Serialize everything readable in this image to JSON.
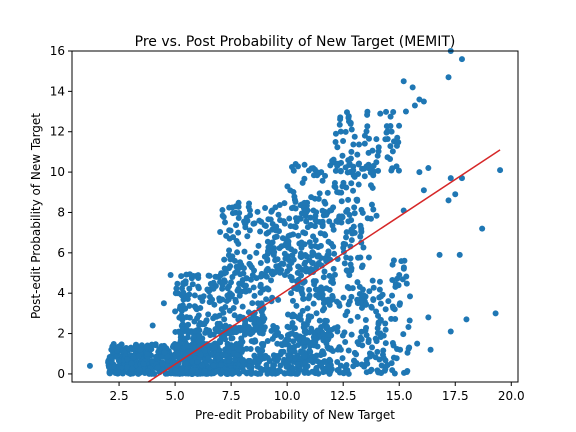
{
  "chart_data": {
    "type": "scatter",
    "title": "Pre vs. Post Probability of New Target (MEMIT)",
    "xlabel": "Pre-edit Probability of New Target",
    "ylabel": "Post-edit Probability of New Target",
    "xlim": [
      0.4,
      20.3
    ],
    "ylim": [
      -0.4,
      16.0
    ],
    "xticks": [
      2.5,
      5.0,
      7.5,
      10.0,
      12.5,
      15.0,
      17.5,
      20.0
    ],
    "xtick_labels": [
      "2.5",
      "5.0",
      "7.5",
      "10.0",
      "12.5",
      "15.0",
      "17.5",
      "20.0"
    ],
    "yticks": [
      0,
      2,
      4,
      6,
      8,
      10,
      12,
      14,
      16
    ],
    "ytick_labels": [
      "0",
      "2",
      "4",
      "6",
      "8",
      "10",
      "12",
      "14",
      "16"
    ],
    "grid": false,
    "point_color": "#1f77b4",
    "fit_line": {
      "x": [
        3.8,
        19.5
      ],
      "y": [
        -0.4,
        11.1
      ],
      "color": "#d62728"
    },
    "points": {
      "notable": [
        [
          17.3,
          16.0
        ],
        [
          17.8,
          15.6
        ],
        [
          17.2,
          14.7
        ],
        [
          16.1,
          13.5
        ],
        [
          15.9,
          13.6
        ],
        [
          15.7,
          13.3
        ],
        [
          15.2,
          14.5
        ],
        [
          15.6,
          14.2
        ],
        [
          15.3,
          13.0
        ],
        [
          16.3,
          10.2
        ],
        [
          15.9,
          10.0
        ],
        [
          17.3,
          9.7
        ],
        [
          17.8,
          9.7
        ],
        [
          19.5,
          10.1
        ],
        [
          17.2,
          8.6
        ],
        [
          17.5,
          8.9
        ],
        [
          18.7,
          7.2
        ],
        [
          17.7,
          5.9
        ],
        [
          15.0,
          4.9
        ],
        [
          14.9,
          4.4
        ],
        [
          19.3,
          3.0
        ],
        [
          18.0,
          2.7
        ],
        [
          17.3,
          2.1
        ],
        [
          16.3,
          2.8
        ],
        [
          16.4,
          1.2
        ],
        [
          15.8,
          1.5
        ],
        [
          4.5,
          3.5
        ],
        [
          4.8,
          4.9
        ],
        [
          4.0,
          2.4
        ],
        [
          1.2,
          0.4
        ],
        [
          2.2,
          0.8
        ],
        [
          16.8,
          5.9
        ],
        [
          16.1,
          9.1
        ],
        [
          15.2,
          8.1
        ]
      ],
      "dense_regions": [
        {
          "n": 600,
          "x": [
            2.0,
            8.0
          ],
          "y": [
            0.0,
            1.5
          ]
        },
        {
          "n": 420,
          "x": [
            5.0,
            12.0
          ],
          "y": [
            0.0,
            2.5
          ]
        },
        {
          "n": 220,
          "x": [
            5.0,
            9.0
          ],
          "y": [
            2.0,
            5.0
          ]
        },
        {
          "n": 200,
          "x": [
            9.0,
            13.5
          ],
          "y": [
            3.5,
            7.5
          ]
        },
        {
          "n": 150,
          "x": [
            7.0,
            11.5
          ],
          "y": [
            5.0,
            8.5
          ]
        },
        {
          "n": 120,
          "x": [
            10.0,
            14.0
          ],
          "y": [
            7.5,
            10.5
          ]
        },
        {
          "n": 80,
          "x": [
            12.0,
            15.0
          ],
          "y": [
            10.0,
            13.0
          ]
        },
        {
          "n": 160,
          "x": [
            10.0,
            14.5
          ],
          "y": [
            0.0,
            3.5
          ]
        },
        {
          "n": 80,
          "x": [
            13.5,
            15.5
          ],
          "y": [
            0.0,
            6.0
          ]
        }
      ]
    }
  }
}
